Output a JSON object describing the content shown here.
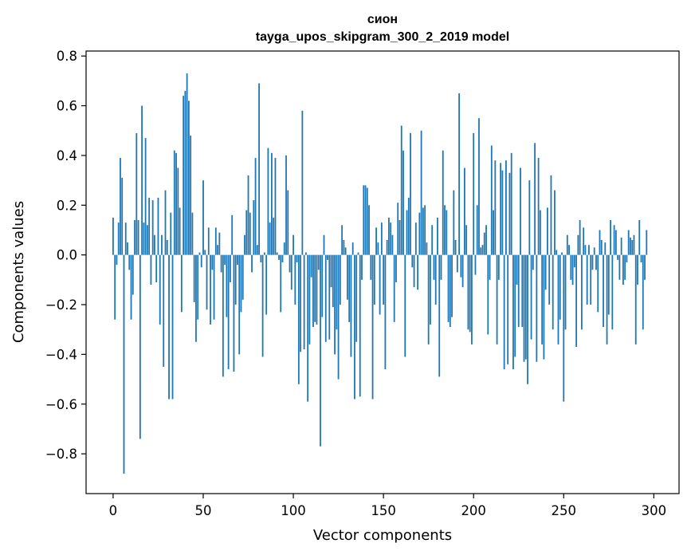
{
  "chart_data": {
    "type": "bar",
    "title": "сион",
    "subtitle": "tayga_upos_skipgram_300_2_2019 model",
    "xlabel": "Vector components",
    "ylabel": "Components values",
    "xlim": [
      -15,
      314
    ],
    "ylim": [
      -0.96,
      0.82
    ],
    "xticks": [
      0,
      50,
      100,
      150,
      200,
      250,
      300
    ],
    "yticks": [
      -0.8,
      -0.6,
      -0.4,
      -0.2,
      0.0,
      0.2,
      0.4,
      0.6,
      0.8
    ],
    "ytick_labels": [
      "−0.8",
      "−0.6",
      "−0.4",
      "−0.2",
      "0.0",
      "0.2",
      "0.4",
      "0.6",
      "0.8"
    ],
    "grid": false,
    "bar_color": "#1f77b4",
    "categories_start": 0,
    "values": [
      0.15,
      -0.26,
      -0.04,
      0.13,
      0.39,
      0.31,
      -0.88,
      0.13,
      0.05,
      -0.06,
      -0.26,
      -0.16,
      0.14,
      0.49,
      0.14,
      -0.74,
      0.6,
      0.13,
      0.47,
      0.12,
      0.23,
      -0.12,
      0.22,
      0.08,
      -0.11,
      0.23,
      -0.28,
      0.08,
      -0.45,
      0.26,
      0.06,
      -0.58,
      0.17,
      -0.58,
      0.42,
      0.41,
      0.35,
      0.19,
      -0.23,
      0.64,
      0.66,
      0.73,
      0.62,
      0.48,
      0.17,
      -0.19,
      -0.35,
      -0.26,
      0.01,
      -0.05,
      0.3,
      0.02,
      -0.22,
      0.11,
      -0.28,
      -0.06,
      -0.26,
      0.11,
      0.04,
      0.09,
      -0.07,
      -0.49,
      -0.04,
      -0.25,
      -0.46,
      -0.11,
      0.16,
      -0.47,
      -0.2,
      -0.04,
      -0.4,
      -0.23,
      -0.18,
      0.08,
      0.18,
      0.32,
      0.17,
      -0.07,
      0.22,
      0.39,
      0.04,
      0.69,
      -0.03,
      -0.41,
      0.01,
      -0.24,
      0.43,
      0.13,
      0.41,
      0.15,
      0.39,
      0.01,
      -0.02,
      -0.23,
      -0.03,
      0.05,
      0.4,
      0.26,
      -0.07,
      -0.14,
      0.08,
      -0.2,
      -0.03,
      -0.52,
      -0.39,
      0.58,
      -0.38,
      0.01,
      -0.59,
      -0.36,
      -0.09,
      -0.29,
      -0.27,
      -0.28,
      -0.06,
      -0.77,
      -0.25,
      0.08,
      -0.35,
      -0.02,
      -0.34,
      -0.13,
      -0.21,
      -0.4,
      -0.3,
      -0.5,
      -0.2,
      0.12,
      0.06,
      0.03,
      -0.18,
      -0.27,
      -0.41,
      0.05,
      -0.58,
      -0.35,
      0.01,
      -0.57,
      -0.1,
      0.28,
      0.28,
      0.27,
      0.2,
      -0.1,
      -0.58,
      -0.2,
      0.11,
      0.05,
      -0.24,
      0.13,
      -0.2,
      -0.46,
      0.06,
      0.15,
      0.13,
      0.08,
      -0.27,
      -0.11,
      0.21,
      0.14,
      0.52,
      0.42,
      -0.41,
      0.18,
      0.23,
      0.49,
      -0.05,
      -0.13,
      0.13,
      -0.14,
      0.17,
      0.5,
      0.19,
      0.2,
      0.05,
      -0.36,
      -0.28,
      0.12,
      -0.1,
      -0.2,
      0.15,
      -0.49,
      -0.1,
      0.42,
      0.2,
      0.18,
      -0.27,
      -0.29,
      -0.25,
      0.26,
      0.06,
      -0.07,
      0.65,
      -0.09,
      -0.13,
      0.35,
      0.12,
      -0.3,
      -0.31,
      -0.36,
      0.49,
      -0.08,
      0.2,
      0.55,
      0.03,
      0.04,
      0.09,
      0.12,
      -0.32,
      -0.1,
      0.44,
      0.18,
      0.38,
      -0.36,
      -0.1,
      0.37,
      0.34,
      -0.46,
      0.38,
      -0.44,
      0.33,
      0.41,
      -0.46,
      -0.41,
      -0.12,
      -0.29,
      0.35,
      -0.29,
      -0.43,
      -0.42,
      -0.52,
      0.3,
      -0.34,
      -0.06,
      0.45,
      -0.43,
      0.39,
      0.18,
      -0.36,
      -0.42,
      -0.14,
      0.19,
      -0.2,
      0.32,
      -0.3,
      0.26,
      0.02,
      -0.36,
      -0.26,
      0.01,
      -0.59,
      -0.3,
      0.08,
      0.04,
      -0.1,
      -0.12,
      -0.05,
      -0.37,
      0.08,
      0.14,
      -0.3,
      0.11,
      0.04,
      -0.2,
      0.04,
      -0.2,
      -0.06,
      0.03,
      -0.06,
      -0.23,
      0.1,
      0.06,
      -0.29,
      0.05,
      -0.36,
      -0.24,
      0.14,
      -0.3,
      0.12,
      0.1,
      -0.02,
      -0.1,
      0.07,
      -0.12,
      -0.1,
      -0.03,
      0.1,
      0.07,
      0.06,
      0.08,
      -0.36,
      -0.12,
      0.14,
      -0.03,
      -0.3,
      -0.1,
      0.1
    ]
  }
}
